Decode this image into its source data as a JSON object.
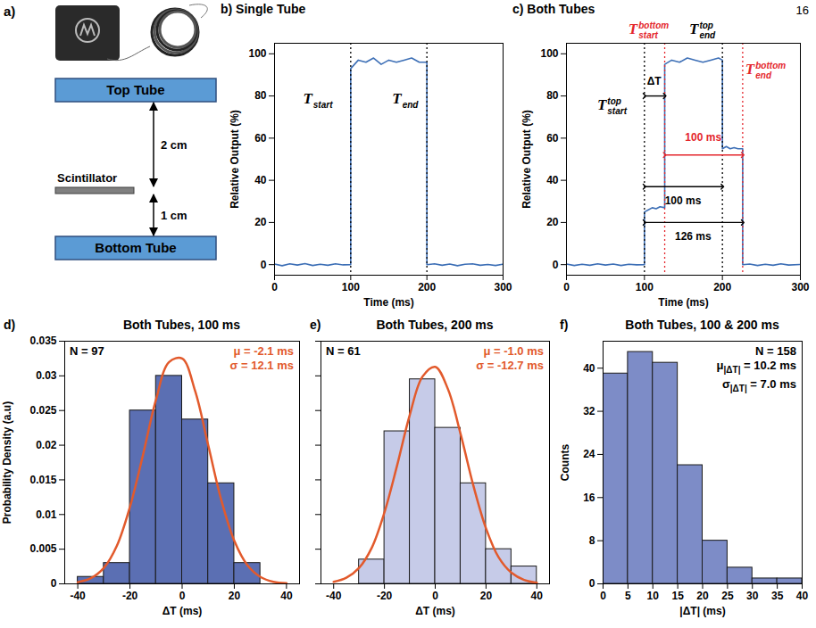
{
  "page_number": "16",
  "panel_a": {
    "letter": "a)",
    "top_tube": "Top Tube",
    "scintillator": "Scintillator",
    "bottom_tube": "Bottom Tube",
    "distances": [
      {
        "value": 2,
        "label": "2 cm"
      },
      {
        "value": 1,
        "label": "1 cm"
      }
    ]
  },
  "chart_data": [
    {
      "panel": "b)",
      "type": "line",
      "title": "Single Tube",
      "xlabel": "Time (ms)",
      "ylabel": "Relative Output (%)",
      "xlim": [
        0,
        300
      ],
      "ylim": [
        -5,
        105
      ],
      "xticks": [
        0,
        100,
        200,
        300
      ],
      "yticks": [
        0,
        20,
        40,
        60,
        80,
        100
      ],
      "grid": false,
      "x": [
        0,
        10,
        20,
        30,
        40,
        50,
        60,
        70,
        80,
        90,
        100,
        100,
        105,
        110,
        120,
        130,
        140,
        150,
        160,
        170,
        180,
        190,
        200,
        200,
        210,
        220,
        230,
        240,
        250,
        260,
        270,
        280,
        290,
        300
      ],
      "series": [
        {
          "color": "#3d6fb6",
          "values": [
            0.3,
            -0.5,
            0.4,
            -0.2,
            0.5,
            -0.4,
            0.2,
            -0.3,
            0.4,
            -0.1,
            0,
            93,
            95,
            97,
            96,
            98,
            95,
            97,
            96,
            97,
            98,
            96,
            96,
            0,
            0.4,
            -0.3,
            0.3,
            -0.5,
            0.2,
            0.4,
            -0.3,
            0.1,
            -0.4,
            0.2
          ]
        }
      ],
      "vlines": [
        {
          "x": 100,
          "color": "#000000",
          "line_style": "dotted"
        },
        {
          "x": 200,
          "color": "#000000",
          "line_style": "dotted"
        }
      ],
      "annotations": [
        {
          "text": "T",
          "sub": "start",
          "x": 38,
          "y": 78,
          "color": "#000000"
        },
        {
          "text": "T",
          "sub": "end",
          "x": 155,
          "y": 78,
          "color": "#000000"
        }
      ]
    },
    {
      "panel": "c)",
      "type": "line",
      "title": "Both Tubes",
      "xlabel": "Time (ms)",
      "ylabel": "Relative Output (%)",
      "xlim": [
        0,
        300
      ],
      "ylim": [
        -5,
        105
      ],
      "xticks": [
        0,
        100,
        200,
        300
      ],
      "yticks": [
        0,
        20,
        40,
        60,
        80,
        100
      ],
      "grid": false,
      "x": [
        0,
        10,
        20,
        30,
        40,
        50,
        60,
        70,
        80,
        90,
        100,
        100,
        105,
        110,
        115,
        120,
        126,
        126,
        135,
        145,
        155,
        165,
        175,
        185,
        195,
        200,
        200,
        205,
        210,
        215,
        220,
        226,
        226,
        235,
        245,
        255,
        265,
        275,
        285,
        300
      ],
      "series": [
        {
          "color": "#3d6fb6",
          "values": [
            0.3,
            -0.4,
            0.2,
            -0.3,
            0.4,
            -0.2,
            0.3,
            -0.4,
            0.2,
            -0.1,
            0,
            25,
            26,
            27,
            26.5,
            27.5,
            27,
            95,
            97,
            96,
            98,
            97,
            96,
            97,
            98,
            97,
            55,
            56,
            55,
            55.5,
            55,
            55,
            0,
            0.3,
            -0.4,
            0.2,
            -0.3,
            0.4,
            -0.2,
            0.1
          ]
        }
      ],
      "vlines": [
        {
          "x": 100,
          "color": "#000000",
          "line_style": "dotted"
        },
        {
          "x": 200,
          "color": "#000000",
          "line_style": "dotted"
        },
        {
          "x": 126,
          "color": "#e4262c",
          "line_style": "dotted"
        },
        {
          "x": 226,
          "color": "#e4262c",
          "line_style": "dotted"
        }
      ],
      "annotations": [
        {
          "text": "T",
          "sup": "top",
          "sub": "start",
          "x": 40,
          "y": 75,
          "color": "#000000"
        },
        {
          "text": "T",
          "sup": "bottom",
          "sub": "start",
          "x": 80,
          "y": 111,
          "color": "#e4262c"
        },
        {
          "text": "T",
          "sup": "top",
          "sub": "end",
          "x": 158,
          "y": 111,
          "color": "#000000"
        },
        {
          "text": "T",
          "sup": "bottom",
          "sub": "end",
          "x": 230,
          "y": 92,
          "color": "#e4262c"
        }
      ],
      "arrows": [
        {
          "label": "ΔT",
          "x1": 100,
          "x2": 126,
          "y": 80,
          "label_y": 87,
          "color": "#000000"
        },
        {
          "label": "100 ms",
          "x1": 126,
          "x2": 226,
          "y": 52,
          "label_y": 60,
          "color": "#e4262c"
        },
        {
          "label": "100 ms",
          "x1": 100,
          "x2": 200,
          "y": 37,
          "label_y": 30,
          "color": "#000000"
        },
        {
          "label": "126 ms",
          "x1": 100,
          "x2": 226,
          "y": 20,
          "label_y": 13,
          "color": "#000000"
        }
      ]
    },
    {
      "panel": "d)",
      "type": "histogram",
      "title": "Both Tubes, 100 ms",
      "xlabel": "ΔT (ms)",
      "ylabel": "Probability Density (a.u)",
      "xlim": [
        -45,
        45
      ],
      "ylim": [
        0,
        0.035
      ],
      "xticks": [
        -40,
        -20,
        0,
        20,
        40
      ],
      "yticks": [
        0,
        0.005,
        0.01,
        0.015,
        0.02,
        0.025,
        0.03,
        0.035
      ],
      "grid": false,
      "bins": [
        -40,
        -30,
        -20,
        -10,
        0,
        10,
        20,
        30
      ],
      "values": [
        0.001,
        0.003,
        0.025,
        0.03,
        0.0237,
        0.0145,
        0.003
      ],
      "color": "#5b6fb3",
      "stats": [
        {
          "text": "N = 97",
          "color": "#000000"
        },
        {
          "text": "μ = -2.1 ms",
          "color": "#e25a2c"
        },
        {
          "text": "σ = 12.1 ms",
          "color": "#e25a2c"
        }
      ],
      "fit": {
        "type": "line",
        "color": "#e25a2c",
        "x": [
          -40,
          -35,
          -30,
          -25,
          -20,
          -15,
          -10,
          -5,
          0,
          5,
          10,
          15,
          20,
          25,
          30,
          35,
          40
        ],
        "values": [
          0.00024,
          0.00081,
          0.0023,
          0.0055,
          0.0111,
          0.0186,
          0.0266,
          0.032,
          0.0325,
          0.0278,
          0.02,
          0.0121,
          0.0062,
          0.0027,
          0.001,
          0.0003,
          0.0001
        ]
      }
    },
    {
      "panel": "e)",
      "type": "histogram",
      "title": "Both Tubes, 200 ms",
      "xlabel": "ΔT (ms)",
      "xlim": [
        -45,
        45
      ],
      "ylim": [
        0,
        0.035
      ],
      "xticks": [
        -40,
        -20,
        0,
        20,
        40
      ],
      "yticks": [
        0,
        0.005,
        0.01,
        0.015,
        0.02,
        0.025,
        0.03,
        0.035
      ],
      "grid": false,
      "tick_labels": "x",
      "bins": [
        -30,
        -20,
        -10,
        0,
        10,
        20,
        30,
        40
      ],
      "values": [
        0.0035,
        0.022,
        0.0295,
        0.0225,
        0.0145,
        0.005,
        0.0025
      ],
      "color": "#c6cbe8",
      "stats": [
        {
          "text": "N = 61",
          "color": "#000000"
        },
        {
          "text": "μ = -1.0 ms",
          "color": "#e25a2c"
        },
        {
          "text": "σ = -12.7 ms",
          "color": "#e25a2c"
        }
      ],
      "fit": {
        "type": "line",
        "color": "#e25a2c",
        "x": [
          -40,
          -35,
          -30,
          -25,
          -20,
          -15,
          -10,
          -5,
          0,
          5,
          10,
          15,
          20,
          25,
          30,
          35,
          40
        ],
        "values": [
          0.00028,
          0.00088,
          0.0023,
          0.0052,
          0.0103,
          0.0171,
          0.0244,
          0.0299,
          0.0313,
          0.0281,
          0.0216,
          0.0142,
          0.008,
          0.0038,
          0.0016,
          0.00057,
          0.00017
        ]
      }
    },
    {
      "panel": "f)",
      "type": "histogram",
      "title": "Both Tubes, 100 & 200 ms",
      "xlabel": "|ΔT| (ms)",
      "ylabel": "Counts",
      "xlim": [
        0,
        40
      ],
      "ylim": [
        0,
        45
      ],
      "xticks": [
        0,
        5,
        10,
        15,
        20,
        25,
        30,
        35,
        40
      ],
      "yticks": [
        0,
        8,
        16,
        24,
        32,
        40
      ],
      "grid": false,
      "bins": [
        0,
        5,
        10,
        15,
        20,
        25,
        30,
        35,
        40
      ],
      "values": [
        39,
        43,
        41,
        22,
        8,
        3,
        1,
        1
      ],
      "color": "#7d8cc7",
      "stats": [
        {
          "text": "N = 158",
          "color": "#000000"
        },
        {
          "text": "μ",
          "sub": "|ΔT|",
          "rest": " = 10.2 ms",
          "color": "#000000"
        },
        {
          "text": "σ",
          "sub": "|ΔT|",
          "rest": " = 7.0 ms",
          "color": "#000000"
        }
      ]
    }
  ]
}
